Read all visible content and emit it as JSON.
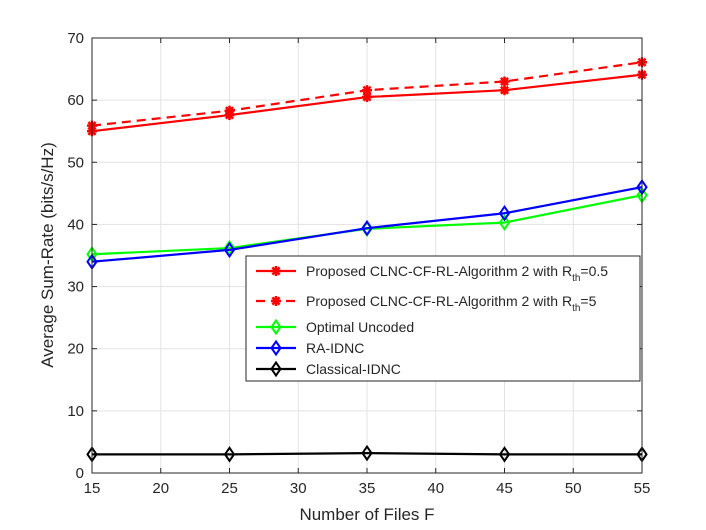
{
  "chart_data": {
    "type": "line",
    "title": "",
    "xlabel": "Number of Files F",
    "ylabel": "Average Sum-Rate (bits/s/Hz)",
    "xlim": [
      15,
      55
    ],
    "ylim": [
      0,
      70
    ],
    "xticks": [
      15,
      20,
      25,
      30,
      35,
      40,
      45,
      50,
      55
    ],
    "yticks": [
      0,
      10,
      20,
      30,
      40,
      50,
      60,
      70
    ],
    "grid": true,
    "legend_position": "center-right",
    "x": [
      15,
      25,
      35,
      45,
      55
    ],
    "series": [
      {
        "name": "Proposed CLNC-CF-RL-Algorithm 2 with R_th=0.5",
        "label_main": "Proposed CLNC-CF-RL-Algorithm 2 with R",
        "label_sub": "th",
        "label_suffix": "=0.5",
        "color": "#ff0000",
        "dash": "solid",
        "marker": "asterisk",
        "values": [
          55.0,
          57.6,
          60.5,
          61.6,
          64.1
        ]
      },
      {
        "name": "Proposed CLNC-CF-RL-Algorithm 2 with R_th=5",
        "label_main": "Proposed CLNC-CF-RL-Algorithm 2 with R",
        "label_sub": "th",
        "label_suffix": "=5",
        "color": "#ff0000",
        "dash": "dashed",
        "marker": "asterisk",
        "values": [
          55.9,
          58.3,
          61.6,
          63.0,
          66.1
        ]
      },
      {
        "name": "Optimal Uncoded",
        "label_main": "Optimal Uncoded",
        "label_sub": "",
        "label_suffix": "",
        "color": "#00ff00",
        "dash": "solid",
        "marker": "diamond",
        "values": [
          35.2,
          36.2,
          39.3,
          40.3,
          44.7
        ]
      },
      {
        "name": "RA-IDNC",
        "label_main": "RA-IDNC",
        "label_sub": "",
        "label_suffix": "",
        "color": "#0000ff",
        "dash": "solid",
        "marker": "diamond",
        "values": [
          34.0,
          35.9,
          39.4,
          41.8,
          46.0
        ]
      },
      {
        "name": "Classical-IDNC",
        "label_main": "Classical-IDNC",
        "label_sub": "",
        "label_suffix": "",
        "color": "#000000",
        "dash": "solid",
        "marker": "diamond",
        "values": [
          3.0,
          3.0,
          3.2,
          3.0,
          3.0
        ]
      }
    ]
  }
}
